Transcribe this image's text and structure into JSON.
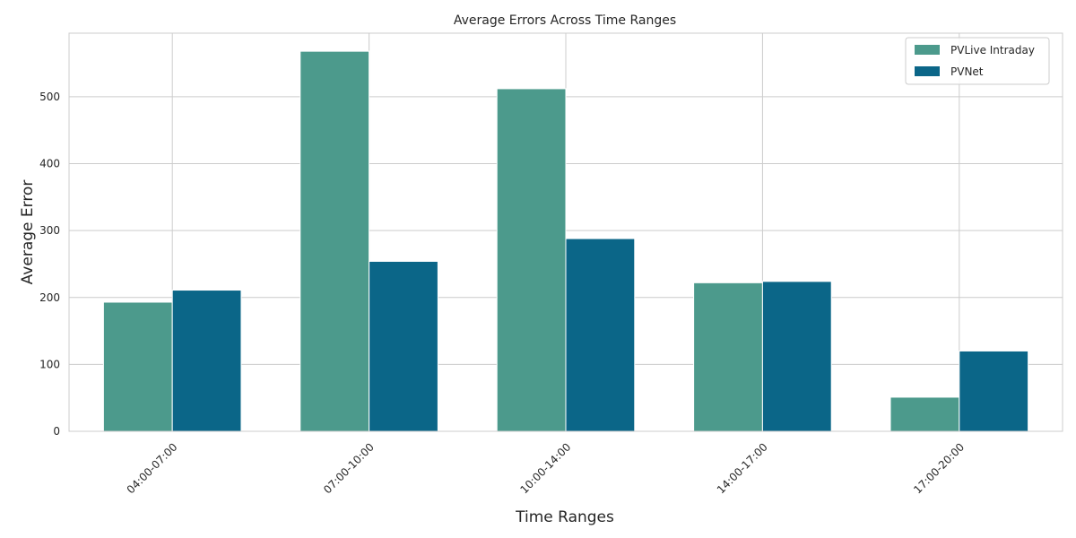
{
  "chart_data": {
    "type": "bar",
    "title": "Average Errors Across Time Ranges",
    "xlabel": "Time Ranges",
    "ylabel": "Average Error",
    "categories": [
      "04:00-07:00",
      "07:00-10:00",
      "10:00-14:00",
      "14:00-17:00",
      "17:00-20:00"
    ],
    "series": [
      {
        "name": "PVLive Intraday",
        "color": "#4c9a8c",
        "values": [
          193,
          568,
          512,
          222,
          51
        ]
      },
      {
        "name": "PVNet",
        "color": "#0b6688",
        "values": [
          211,
          254,
          288,
          224,
          120
        ]
      }
    ],
    "ylim": [
      0,
      595
    ],
    "yticks": [
      0,
      100,
      200,
      300,
      400,
      500
    ],
    "grid": true,
    "legend_position": "top-right"
  }
}
